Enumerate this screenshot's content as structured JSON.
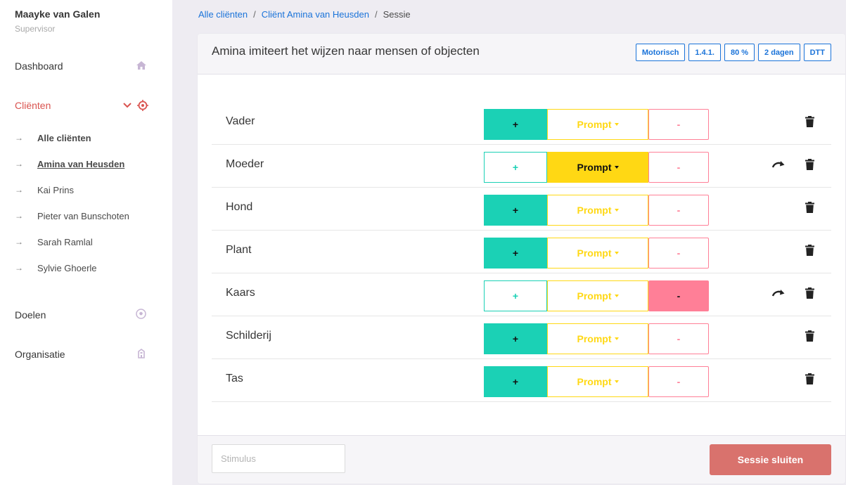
{
  "user": {
    "name": "Maayke van Galen",
    "role": "Supervisor"
  },
  "nav": {
    "dashboard": "Dashboard",
    "clienten": "Cliënten",
    "sub_items": [
      {
        "label": "Alle cliënten"
      },
      {
        "label": "Amina van Heusden"
      },
      {
        "label": "Kai Prins"
      },
      {
        "label": "Pieter van Bunschoten"
      },
      {
        "label": "Sarah Ramlal"
      },
      {
        "label": "Sylvie Ghoerle"
      }
    ],
    "doelen": "Doelen",
    "organisatie": "Organisatie"
  },
  "breadcrumb": {
    "items": [
      "Alle cliënten",
      "Cliënt Amina van Heusden"
    ],
    "current": "Sessie",
    "separator": "/"
  },
  "card": {
    "title": "Amina imiteert het wijzen naar mensen of objecten",
    "tags": [
      "Motorisch",
      "1.4.1.",
      "80 %",
      "2 dagen",
      "DTT"
    ]
  },
  "buttons": {
    "plus": "+",
    "prompt": "Prompt",
    "minus": "-"
  },
  "rows": [
    {
      "label": "Vader",
      "selected": "plus",
      "redo": false
    },
    {
      "label": "Moeder",
      "selected": "prompt",
      "redo": true
    },
    {
      "label": "Hond",
      "selected": "plus",
      "redo": false
    },
    {
      "label": "Plant",
      "selected": "plus",
      "redo": false
    },
    {
      "label": "Kaars",
      "selected": "minus",
      "redo": true
    },
    {
      "label": "Schilderij",
      "selected": "plus",
      "redo": false
    },
    {
      "label": "Tas",
      "selected": "plus",
      "redo": false
    }
  ],
  "footer": {
    "stimulus_placeholder": "Stimulus",
    "close_label": "Sessie sluiten"
  },
  "colors": {
    "accent_red": "#d9534f",
    "link_blue": "#1a73d9",
    "plus_teal": "#1bd1b5",
    "prompt_yellow": "#ffd814",
    "minus_pink": "#ff7f97",
    "close_button": "#d9726d"
  }
}
